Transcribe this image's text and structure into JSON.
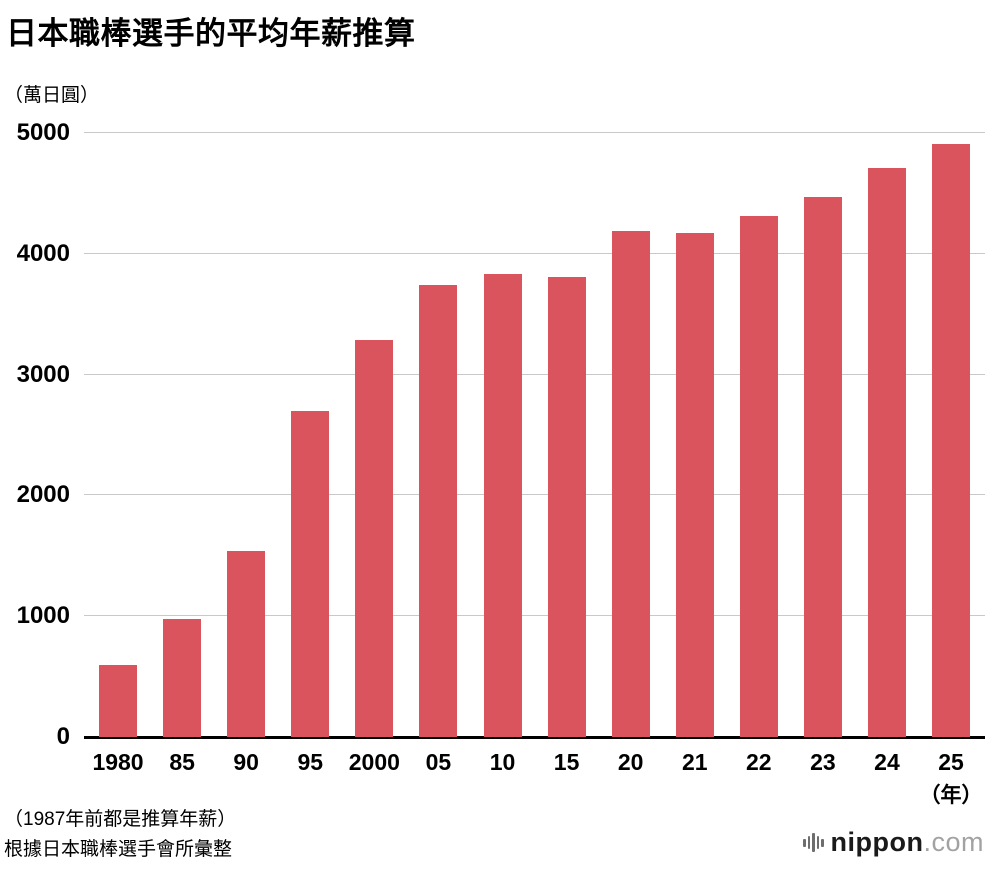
{
  "title": "日本職棒選手的平均年薪推算",
  "unit_label": "（萬日圓）",
  "chart_data": {
    "type": "bar",
    "categories": [
      "1980",
      "85",
      "90",
      "95",
      "2000",
      "05",
      "10",
      "15",
      "20",
      "21",
      "22",
      "23",
      "24",
      "25"
    ],
    "values": [
      600,
      980,
      1540,
      2700,
      3290,
      3740,
      3830,
      3810,
      4190,
      4170,
      4310,
      4470,
      4710,
      4910
    ],
    "title": "日本職棒選手的平均年薪推算",
    "xlabel": "（年）",
    "ylabel": "（萬日圓）",
    "ylim": [
      0,
      5000
    ],
    "ytick_step": 1000,
    "yticks": [
      0,
      1000,
      2000,
      3000,
      4000,
      5000
    ],
    "bar_color": "#d9545c",
    "grid": true,
    "legend": "none"
  },
  "footnotes": {
    "line1": "（1987年前都是推算年薪）",
    "line2": "根據日本職棒選手會所彙整"
  },
  "logo": {
    "name": "nippon",
    "domain": ".com"
  }
}
